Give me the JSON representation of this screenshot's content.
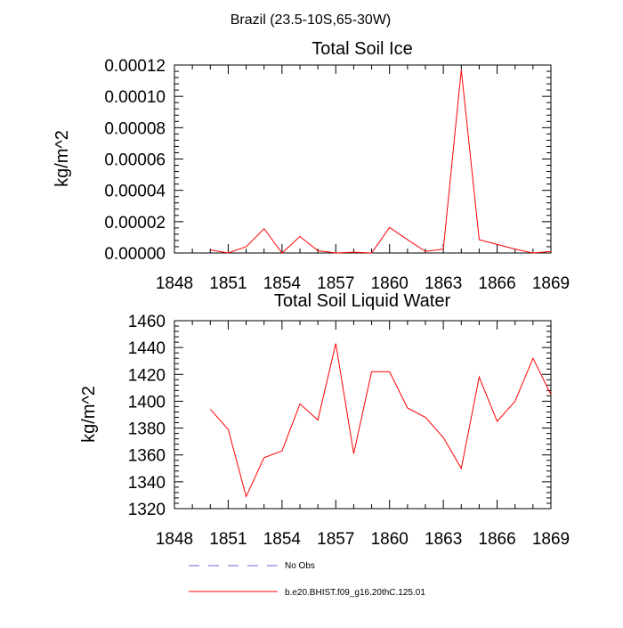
{
  "figure": {
    "suptitle": "Brazil (23.5-10S,65-30W)"
  },
  "chart_data": [
    {
      "type": "line",
      "title": "Total Soil Ice",
      "xlabel": "",
      "ylabel": "kg/m^2",
      "xlim": [
        1848,
        1869
      ],
      "ylim": [
        0,
        0.00012
      ],
      "x_ticks": [
        1848,
        1851,
        1854,
        1857,
        1860,
        1863,
        1866,
        1869
      ],
      "y_ticks": [
        0,
        2e-05,
        4e-05,
        6e-05,
        8e-05,
        0.0001,
        0.00012
      ],
      "y_tick_labels": [
        "0.00000",
        "0.00002",
        "0.00004",
        "0.00006",
        "0.00008",
        "0.00010",
        "0.00012"
      ],
      "x": [
        1850,
        1851,
        1852,
        1853,
        1854,
        1855,
        1856,
        1857,
        1858,
        1859,
        1860,
        1861,
        1862,
        1863,
        1864,
        1865,
        1866,
        1867,
        1868,
        1869
      ],
      "series": [
        {
          "name": "b.e20.BHIST.f09_g16.20thC.125.01",
          "color": "#ff0000",
          "values": [
            2e-06,
            0.0,
            4e-06,
            1.55e-05,
            0.0,
            1.05e-05,
            1.5e-06,
            0.0,
            5e-07,
            0.0,
            1.63e-05,
            8.5e-06,
            1e-06,
            2.5e-06,
            0.000117,
            8.5e-06,
            5.5e-06,
            2.5e-06,
            0.0,
            1e-06
          ]
        }
      ]
    },
    {
      "type": "line",
      "title": "Total Soil Liquid Water",
      "xlabel": "",
      "ylabel": "kg/m^2",
      "xlim": [
        1848,
        1869
      ],
      "ylim": [
        1320,
        1460
      ],
      "x_ticks": [
        1848,
        1851,
        1854,
        1857,
        1860,
        1863,
        1866,
        1869
      ],
      "y_ticks": [
        1320,
        1340,
        1360,
        1380,
        1400,
        1420,
        1440,
        1460
      ],
      "y_tick_labels": [
        "1320",
        "1340",
        "1360",
        "1380",
        "1400",
        "1420",
        "1440",
        "1460"
      ],
      "x": [
        1850,
        1851,
        1852,
        1853,
        1854,
        1855,
        1856,
        1857,
        1858,
        1859,
        1860,
        1861,
        1862,
        1863,
        1864,
        1865,
        1866,
        1867,
        1868,
        1869
      ],
      "series": [
        {
          "name": "b.e20.BHIST.f09_g16.20thC.125.01",
          "color": "#ff0000",
          "values": [
            1394,
            1379,
            1329,
            1358,
            1363,
            1398,
            1386,
            1443,
            1361,
            1422,
            1422,
            1395,
            1388,
            1373,
            1350,
            1418,
            1385,
            1400,
            1432,
            1405
          ]
        }
      ]
    }
  ],
  "legend": {
    "items": [
      {
        "label": "No Obs",
        "style": "dashed",
        "color": "#6a6ad8"
      },
      {
        "label": "b.e20.BHIST.f09_g16.20thC.125.01",
        "style": "solid",
        "color": "#ff0000"
      }
    ]
  }
}
